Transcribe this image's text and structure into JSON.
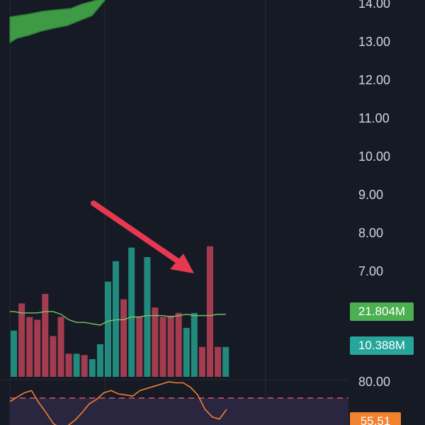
{
  "colors": {
    "background": "#161a25",
    "grid": "#262b38",
    "up": "#22897d",
    "down": "#a33c4f",
    "cloud_fill": "#3f9a46",
    "cloud_edge": "#2f7a35",
    "volume_ma": "#7bc36b",
    "volume_ma_tag": "#4caf50",
    "volume_tag": "#26a69a",
    "oscillator_line": "#f0812f",
    "oscillator_tag": "#f0812f",
    "oscillator_band": "#2b2640",
    "oscillator_dashed": "#d9556b",
    "arrow": "#e63950"
  },
  "price_axis": {
    "ticks": [
      "14.00",
      "13.00",
      "12.00",
      "11.00",
      "10.00",
      "9.00",
      "8.00",
      "7.00"
    ]
  },
  "volume": {
    "ma_label": "21.804M",
    "current_label": "10.388M"
  },
  "oscillator": {
    "top_tick": "80.00",
    "current_label": "55.51"
  },
  "chart_data": {
    "type": "bar",
    "series": [
      {
        "values": [
          3.4,
          5.4,
          4.4,
          4.2,
          6.1,
          3.0,
          4.4,
          1.7,
          1.7,
          1.6,
          1.3,
          2.4,
          7.0,
          8.5,
          5.7,
          9.5,
          4.4,
          8.8,
          5.1,
          4.4,
          4.5,
          4.7,
          3.6,
          4.7,
          2.2,
          9.6,
          2.2,
          2.2
        ],
        "directions": [
          "up",
          "down",
          "down",
          "down",
          "down",
          "down",
          "down",
          "down",
          "up",
          "down",
          "up",
          "up",
          "up",
          "up",
          "down",
          "up",
          "down",
          "up",
          "down",
          "down",
          "down",
          "down",
          "up",
          "up",
          "down",
          "down",
          "down",
          "up"
        ]
      },
      {
        "values": [
          4.8,
          4.7,
          4.7,
          4.7,
          4.8,
          4.8,
          4.6,
          4.2,
          4.0,
          4.0,
          3.9,
          3.8,
          4.1,
          4.2,
          4.2,
          4.4,
          4.4,
          4.5,
          4.5,
          4.5,
          4.4,
          4.5,
          4.6,
          4.5,
          4.5,
          4.5,
          4.6,
          4.6
        ]
      }
    ],
    "oscillator_values": [
      62,
      66,
      70,
      72,
      61,
      52,
      42,
      38,
      40,
      45,
      52,
      60,
      64,
      70,
      72,
      69,
      68,
      67,
      72,
      74,
      76,
      78,
      80,
      79,
      79,
      75,
      68,
      55,
      48,
      46,
      55
    ]
  }
}
